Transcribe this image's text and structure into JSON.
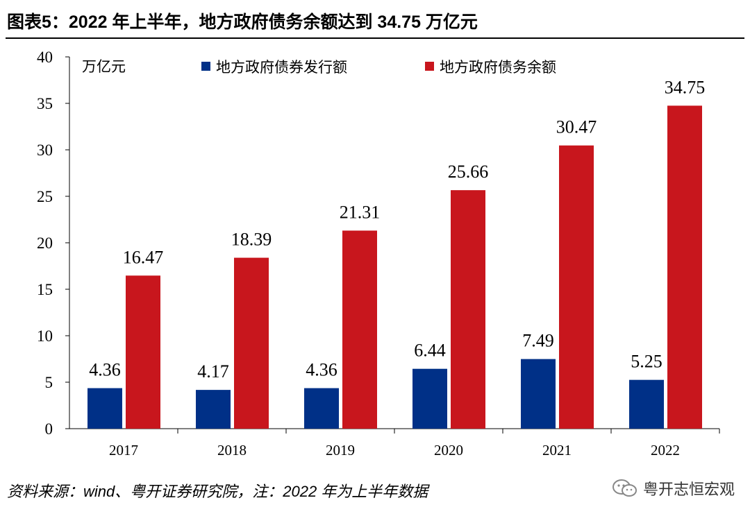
{
  "title": "图表5：2022 年上半年，地方政府债务余额达到 34.75 万亿元",
  "source": "资料来源：wind、粤开证券研究院，注：2022 年为上半年数据",
  "watermark": "粤开志恒宏观",
  "colors": {
    "issuance": "#003087",
    "balance": "#C8161D"
  },
  "chart_data": {
    "type": "bar",
    "title": "2022 年上半年，地方政府债务余额达到 34.75 万亿元",
    "unit_label": "万亿元",
    "categories": [
      "2017",
      "2018",
      "2019",
      "2020",
      "2021",
      "2022"
    ],
    "series": [
      {
        "name": "地方政府债券发行额",
        "values": [
          4.36,
          4.17,
          4.36,
          6.44,
          7.49,
          5.25
        ],
        "value_labels": [
          "4.36",
          "4.17",
          "4.36",
          "6.44",
          "7.49",
          "5.25"
        ]
      },
      {
        "name": "地方政府债务余额",
        "values": [
          16.47,
          18.39,
          21.31,
          25.66,
          30.47,
          34.75
        ],
        "value_labels": [
          "16.47",
          "18.39",
          "21.31",
          "25.66",
          "30.47",
          "34.75"
        ]
      }
    ],
    "ylim": [
      0,
      40
    ],
    "yticks": [
      0,
      5,
      10,
      15,
      20,
      25,
      30,
      35,
      40
    ],
    "legend": "top",
    "grid": false
  }
}
